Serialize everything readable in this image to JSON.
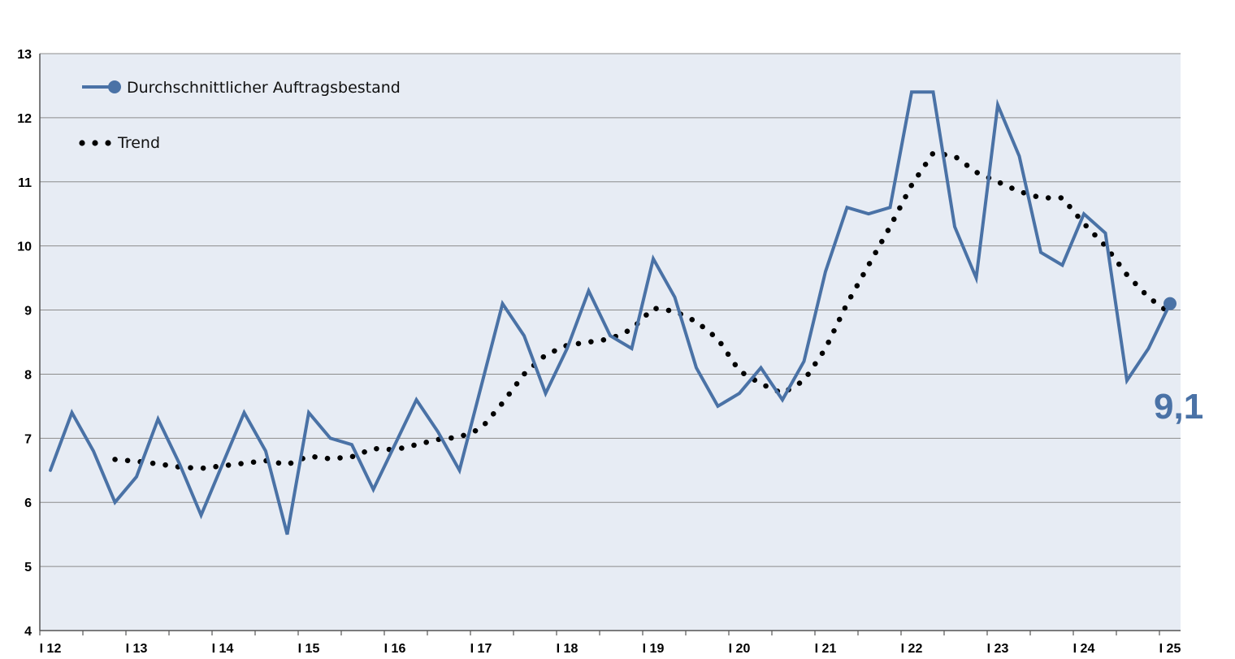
{
  "chart_data": {
    "type": "line",
    "colors": {
      "series": "#4a72a6",
      "trend": "#000000",
      "plot_bg": "#e7ecf4",
      "grid": "#8c8c8c"
    },
    "ylim": [
      4,
      13
    ],
    "yticks": [
      "4",
      "5",
      "6",
      "7",
      "8",
      "9",
      "10",
      "11",
      "12",
      "13"
    ],
    "xtick_labels": [
      "I 12",
      "I 13",
      "I 14",
      "I 15",
      "I 16",
      "I 17",
      "I 18",
      "I 19",
      "I 20",
      "I 21",
      "I 22",
      "I 23",
      "I 24",
      "I 25"
    ],
    "legend": {
      "placement": "top-left",
      "entries": [
        "Durchschnittlicher Auftragsbestand",
        "Trend"
      ]
    },
    "series": [
      {
        "name": "Durchschnittlicher Auftragsbestand",
        "values": [
          6.5,
          7.4,
          6.8,
          6.0,
          6.4,
          7.3,
          6.6,
          5.8,
          6.6,
          7.4,
          6.8,
          5.5,
          7.4,
          7.0,
          6.9,
          6.2,
          6.9,
          7.6,
          7.1,
          6.5,
          7.8,
          9.1,
          8.6,
          7.7,
          8.4,
          9.3,
          8.6,
          8.4,
          9.8,
          9.2,
          8.1,
          7.5,
          7.7,
          8.1,
          7.6,
          8.2,
          9.6,
          10.6,
          10.5,
          10.6,
          12.4,
          12.4,
          10.3,
          9.5,
          12.2,
          11.4,
          9.9,
          9.7,
          10.5,
          10.2,
          7.9,
          8.4,
          9.1
        ]
      },
      {
        "name": "Trend",
        "start_index": 3,
        "values": [
          6.67,
          6.64,
          6.6,
          6.55,
          6.53,
          6.57,
          6.61,
          6.65,
          6.59,
          6.72,
          6.68,
          6.71,
          6.84,
          6.82,
          6.9,
          6.98,
          7.02,
          7.15,
          7.55,
          8.0,
          8.3,
          8.45,
          8.5,
          8.55,
          8.7,
          9.03,
          8.98,
          8.82,
          8.55,
          8.05,
          7.85,
          7.7,
          7.9,
          8.4,
          9.1,
          9.7,
          10.3,
          10.95,
          11.45,
          11.4,
          11.15,
          11.0,
          10.85,
          10.75,
          10.75,
          10.35,
          10.0,
          9.55,
          9.2,
          8.95
        ]
      }
    ],
    "end_label": "9,1"
  }
}
